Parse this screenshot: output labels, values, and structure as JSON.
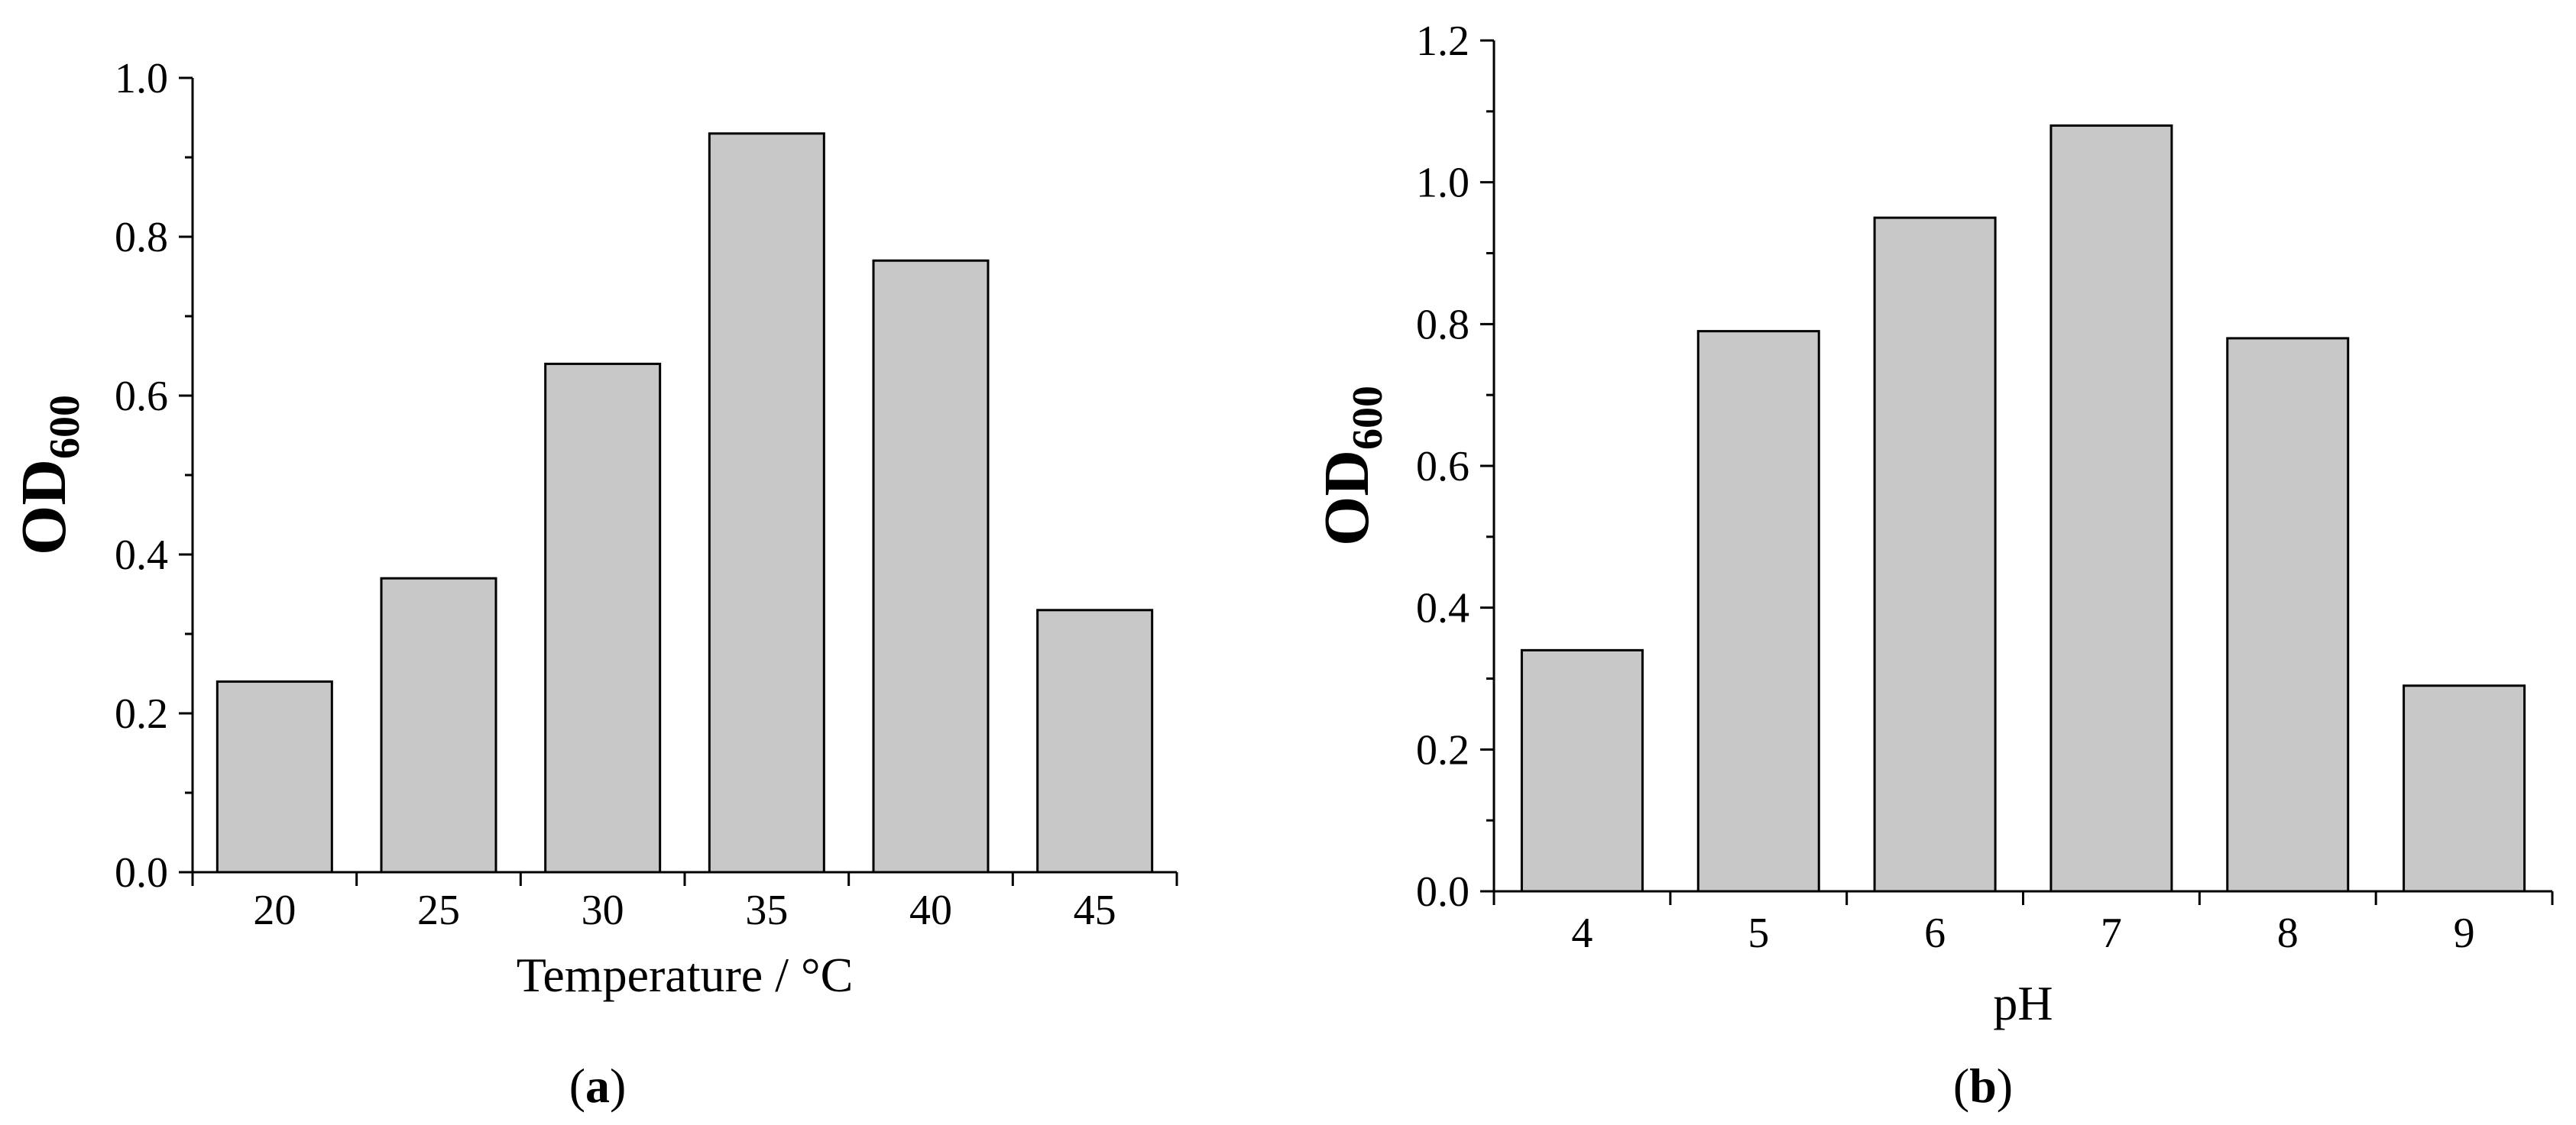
{
  "chart_data": [
    {
      "type": "bar",
      "panel_label": "a",
      "categories": [
        "20",
        "25",
        "30",
        "35",
        "40",
        "45"
      ],
      "values": [
        0.24,
        0.37,
        0.64,
        0.93,
        0.77,
        0.33
      ],
      "xlabel": "Temperature / °C",
      "ylabel_main": "OD",
      "ylabel_sub": "600",
      "ylim": [
        0,
        1.0
      ],
      "yticks": [
        "0.0",
        "0.2",
        "0.4",
        "0.6",
        "0.8",
        "1.0"
      ],
      "bar_color": "#c8c8c8",
      "grid": false
    },
    {
      "type": "bar",
      "panel_label": "b",
      "categories": [
        "4",
        "5",
        "6",
        "7",
        "8",
        "9"
      ],
      "values": [
        0.34,
        0.79,
        0.95,
        1.08,
        0.78,
        0.29
      ],
      "xlabel": "pH",
      "ylabel_main": "OD",
      "ylabel_sub": "600",
      "ylim": [
        0,
        1.2
      ],
      "yticks": [
        "0.0",
        "0.2",
        "0.4",
        "0.6",
        "0.8",
        "1.0",
        "1.2"
      ],
      "bar_color": "#c8c8c8",
      "grid": false
    }
  ]
}
